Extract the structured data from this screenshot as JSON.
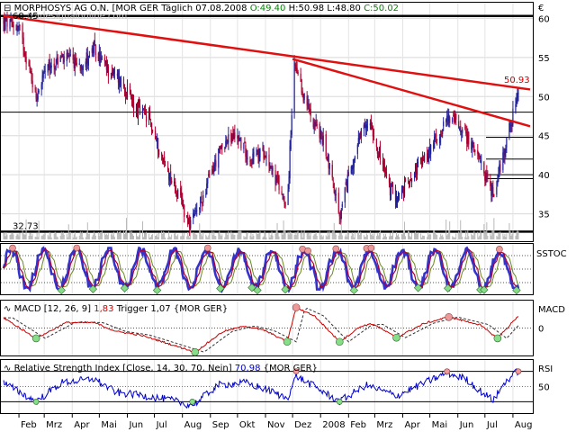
{
  "header": {
    "instrument": "MORPHOSYS AG O.N.",
    "exchange": "[MOR GER",
    "period": "Täglich",
    "date": "07.08.2008",
    "open": "O:49.40",
    "high": "H:50.98",
    "low": "L:48.80",
    "close": "C:50.02",
    "watermark": "tradesignalonline.com",
    "currency_symbol": "€",
    "top_fragment": "60.45"
  },
  "colors": {
    "candle_up": "#1f1f9a",
    "candle_down": "#b00030",
    "trendline": "#e01010",
    "stoch_k": "#3333cc",
    "stoch_d": "#aa0033",
    "stoch_slow": "#6a8a20",
    "macd_line": "#cc0000",
    "macd_trigger": "#333333",
    "rsi_line": "#0000cc",
    "marker_high": "#ee9999",
    "marker_low": "#88dd88",
    "panel_border": "#000000"
  },
  "chart_data": [
    {
      "type": "candlestick",
      "panel": "price",
      "title": "MORPHOSYS AG O.N. [MOR GER Täglich 07.08.2008",
      "ylim": [
        31.5,
        62
      ],
      "y_ticks": [
        35,
        40,
        45,
        50,
        55,
        60
      ],
      "x_ticks": [
        "Feb",
        "Mrz",
        "Apr",
        "Mai",
        "Jun",
        "Jul",
        "Aug",
        "Sep",
        "Okt",
        "Nov",
        "Dez",
        "2008",
        "Feb",
        "Mrz",
        "Apr",
        "Mai",
        "Jun",
        "Jul",
        "Aug"
      ],
      "x_range": [
        "2007-01-15",
        "2008-08-20"
      ],
      "path": [
        [
          "2007-01-15",
          59.5
        ],
        [
          "2007-02-01",
          58.8
        ],
        [
          "2007-02-20",
          50.0
        ],
        [
          "2007-03-01",
          53.0
        ],
        [
          "2007-03-20",
          55.0
        ],
        [
          "2007-04-10",
          54.0
        ],
        [
          "2007-04-25",
          56.0
        ],
        [
          "2007-05-10",
          53.5
        ],
        [
          "2007-05-25",
          52.0
        ],
        [
          "2007-06-10",
          48.5
        ],
        [
          "2007-06-25",
          47.0
        ],
        [
          "2007-07-10",
          42.0
        ],
        [
          "2007-07-25",
          38.0
        ],
        [
          "2007-08-10",
          33.5
        ],
        [
          "2007-08-20",
          36.0
        ],
        [
          "2007-09-01",
          40.0
        ],
        [
          "2007-09-15",
          44.0
        ],
        [
          "2007-10-01",
          45.0
        ],
        [
          "2007-10-15",
          42.0
        ],
        [
          "2007-11-01",
          43.0
        ],
        [
          "2007-11-10",
          40.0
        ],
        [
          "2007-11-25",
          36.0
        ],
        [
          "2007-12-03",
          54.0
        ],
        [
          "2007-12-10",
          51.0
        ],
        [
          "2007-12-20",
          48.0
        ],
        [
          "2008-01-05",
          44.0
        ],
        [
          "2008-01-15",
          39.0
        ],
        [
          "2008-01-22",
          34.0
        ],
        [
          "2008-02-01",
          40.0
        ],
        [
          "2008-02-15",
          45.0
        ],
        [
          "2008-02-25",
          47.0
        ],
        [
          "2008-03-05",
          43.0
        ],
        [
          "2008-03-18",
          38.0
        ],
        [
          "2008-03-28",
          37.0
        ],
        [
          "2008-04-10",
          40.0
        ],
        [
          "2008-04-25",
          42.0
        ],
        [
          "2008-05-10",
          45.0
        ],
        [
          "2008-05-22",
          47.5
        ],
        [
          "2008-06-05",
          46.0
        ],
        [
          "2008-06-20",
          43.0
        ],
        [
          "2008-07-01",
          40.0
        ],
        [
          "2008-07-10",
          37.5
        ],
        [
          "2008-07-20",
          42.0
        ],
        [
          "2008-07-28",
          46.0
        ],
        [
          "2008-08-07",
          50.0
        ]
      ],
      "last_value_label": "50.93",
      "low_label": "32.73",
      "resistance_lines": [
        60.3,
        32.73
      ],
      "horizontal_levels": [
        48.0,
        44.8,
        42.0,
        40.0,
        39.5
      ],
      "trendlines": [
        {
          "from": [
            "2007-01-15",
            60.3
          ],
          "to": [
            "2008-08-20",
            50.9
          ]
        },
        {
          "from": [
            "2007-12-01",
            54.8
          ],
          "to": [
            "2008-08-20",
            46.2
          ]
        }
      ]
    },
    {
      "type": "line",
      "panel": "stochastic",
      "title": "SSTOC",
      "ylim": [
        0,
        100
      ],
      "series": [
        {
          "values": []
        },
        {
          "values": []
        }
      ]
    },
    {
      "type": "line",
      "panel": "macd",
      "title": "MACD [12, 26, 9]",
      "macd_value": "1,83",
      "trigger_label": "Trigger",
      "trigger_value": "1,07",
      "instrument_tag": "{MOR GER}",
      "axis_label": "MACD",
      "y_ticks": [
        0
      ],
      "ylim": [
        -4,
        4
      ],
      "path": [
        [
          "2007-01-15",
          1.5
        ],
        [
          "2007-02-20",
          -1.5
        ],
        [
          "2007-03-25",
          0.8
        ],
        [
          "2007-04-25",
          0.8
        ],
        [
          "2007-05-20",
          -0.5
        ],
        [
          "2007-06-15",
          -1.0
        ],
        [
          "2007-07-10",
          -2.0
        ],
        [
          "2007-08-15",
          -3.5
        ],
        [
          "2007-09-15",
          -0.5
        ],
        [
          "2007-10-10",
          0.3
        ],
        [
          "2007-11-01",
          -0.4
        ],
        [
          "2007-11-25",
          -2.0
        ],
        [
          "2007-12-05",
          3.0
        ],
        [
          "2007-12-25",
          1.8
        ],
        [
          "2008-01-22",
          -2.0
        ],
        [
          "2008-02-15",
          0.3
        ],
        [
          "2008-02-28",
          0.6
        ],
        [
          "2008-03-25",
          -1.4
        ],
        [
          "2008-04-25",
          0.7
        ],
        [
          "2008-05-22",
          1.6
        ],
        [
          "2008-06-25",
          0.5
        ],
        [
          "2008-07-15",
          -1.5
        ],
        [
          "2008-08-07",
          1.8
        ]
      ],
      "trigger_offset_days": 10
    },
    {
      "type": "line",
      "panel": "rsi",
      "title": "Relative Strength Index [Close, 14, 30, 70, Nein]",
      "value": "70,98",
      "instrument_tag": "{MOR GER}",
      "axis_label": "RSI",
      "y_ticks": [
        50
      ],
      "ylim": [
        15,
        85
      ],
      "levels": [
        70,
        30
      ],
      "path": [
        [
          "2007-01-15",
          55
        ],
        [
          "2007-02-20",
          30
        ],
        [
          "2007-03-20",
          55
        ],
        [
          "2007-04-25",
          60
        ],
        [
          "2007-05-20",
          42
        ],
        [
          "2007-06-20",
          38
        ],
        [
          "2007-07-20",
          32
        ],
        [
          "2007-08-12",
          25
        ],
        [
          "2007-09-10",
          52
        ],
        [
          "2007-10-10",
          55
        ],
        [
          "2007-11-05",
          45
        ],
        [
          "2007-11-25",
          34
        ],
        [
          "2007-12-05",
          64
        ],
        [
          "2007-12-25",
          50
        ],
        [
          "2008-01-22",
          30
        ],
        [
          "2008-02-20",
          52
        ],
        [
          "2008-03-25",
          38
        ],
        [
          "2008-04-20",
          52
        ],
        [
          "2008-05-20",
          68
        ],
        [
          "2008-06-10",
          60
        ],
        [
          "2008-06-25",
          45
        ],
        [
          "2008-07-10",
          32
        ],
        [
          "2008-07-25",
          58
        ],
        [
          "2008-08-07",
          71
        ]
      ]
    }
  ]
}
